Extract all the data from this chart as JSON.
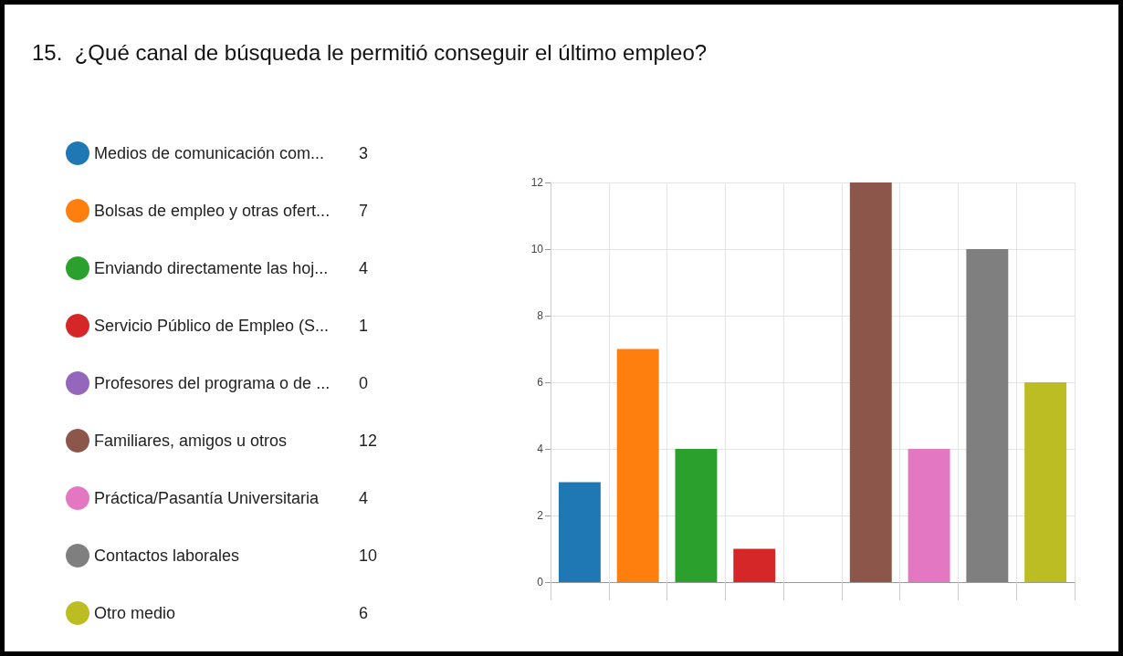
{
  "chart_data": {
    "type": "bar",
    "title": "15.  ¿Qué canal de búsqueda le permitió conseguir el último empleo?",
    "categories": [
      null,
      null,
      null,
      null,
      null,
      null,
      null,
      null,
      null
    ],
    "series": [
      {
        "name": "Medios de comunicación com...",
        "color": "#1f77b4",
        "values": [
          3,
          null,
          null,
          null,
          null,
          null,
          null,
          null,
          null
        ]
      },
      {
        "name": "Bolsas de empleo y otras ofert...",
        "color": "#ff7f0e",
        "values": [
          null,
          7,
          null,
          null,
          null,
          null,
          null,
          null,
          null
        ]
      },
      {
        "name": "Enviando directamente las hoj...",
        "color": "#2ca02c",
        "values": [
          null,
          null,
          4,
          null,
          null,
          null,
          null,
          null,
          null
        ]
      },
      {
        "name": "Servicio Público de Empleo (S...",
        "color": "#d62728",
        "values": [
          null,
          null,
          null,
          1,
          null,
          null,
          null,
          null,
          null
        ]
      },
      {
        "name": "Profesores del programa o de ...",
        "color": "#9467bd",
        "values": [
          null,
          null,
          null,
          null,
          0,
          null,
          null,
          null,
          null
        ]
      },
      {
        "name": "Familiares, amigos u otros",
        "color": "#8c564b",
        "values": [
          null,
          null,
          null,
          null,
          null,
          12,
          null,
          null,
          null
        ]
      },
      {
        "name": "Práctica/Pasantía Universitaria",
        "color": "#e377c2",
        "values": [
          null,
          null,
          null,
          null,
          null,
          null,
          4,
          null,
          null
        ]
      },
      {
        "name": "Contactos laborales",
        "color": "#7f7f7f",
        "values": [
          null,
          null,
          null,
          null,
          null,
          null,
          null,
          10,
          null
        ]
      },
      {
        "name": "Otro medio",
        "color": "#bcbd22",
        "values": [
          null,
          null,
          null,
          null,
          null,
          null,
          null,
          null,
          6
        ]
      }
    ],
    "ylim": [
      0,
      12
    ],
    "yticks": [
      0,
      2,
      4,
      6,
      8,
      10,
      12
    ],
    "annotations": [
      "3",
      "7",
      "4",
      "1",
      "0",
      "12",
      "4",
      "10",
      "6"
    ],
    "grid": true,
    "legend": "left",
    "tick_labels": "y"
  }
}
